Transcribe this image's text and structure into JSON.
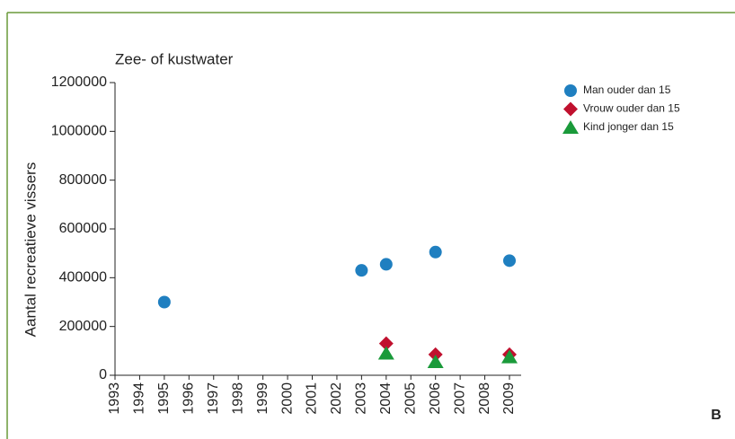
{
  "chart_data": {
    "type": "scatter",
    "title": "Zee- of kustwater",
    "y_label": "Aantal recreatieve vissers",
    "annotation": "B",
    "xlim": [
      1993,
      2009
    ],
    "xticks": [
      1993,
      1994,
      1995,
      1996,
      1997,
      1998,
      1999,
      2000,
      2001,
      2002,
      2003,
      2004,
      2005,
      2006,
      2007,
      2008,
      2009
    ],
    "ylim": [
      0,
      1200000
    ],
    "yticks": [
      0,
      200000,
      400000,
      600000,
      800000,
      1000000,
      1200000
    ],
    "legend": "upper right",
    "series": [
      {
        "name": "Man ouder dan 15",
        "color": "#1f7fc0",
        "marker": "circle",
        "x": [
          1995,
          2003,
          2004,
          2006,
          2009
        ],
        "values": [
          300000,
          430000,
          455000,
          505000,
          470000
        ]
      },
      {
        "name": "Vrouw ouder dan 15",
        "color": "#c0102e",
        "marker": "diamond",
        "x": [
          2004,
          2006,
          2009
        ],
        "values": [
          130000,
          85000,
          85000
        ]
      },
      {
        "name": "Kind jonger dan 15",
        "color": "#1a9a3a",
        "marker": "triangle",
        "x": [
          2004,
          2006,
          2009
        ],
        "values": [
          90000,
          55000,
          75000
        ]
      }
    ]
  }
}
